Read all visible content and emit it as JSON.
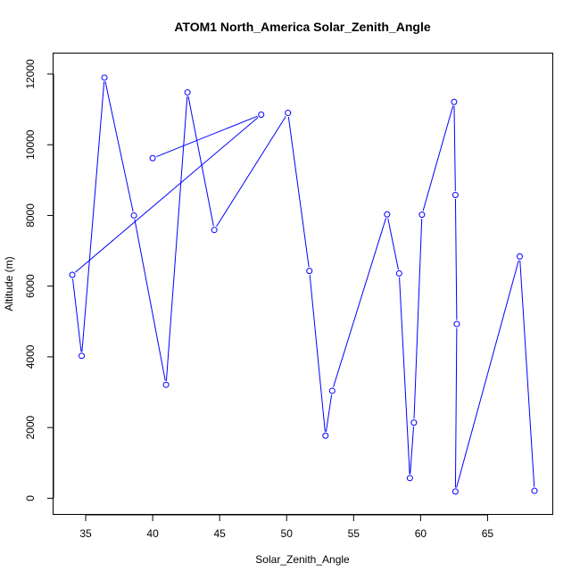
{
  "chart_data": {
    "type": "line",
    "title": "ATOM1 North_America Solar_Zenith_Angle",
    "xlabel": "Solar_Zenith_Angle",
    "ylabel": "Altitude (m)",
    "xlim": [
      32.6,
      69.9
    ],
    "ylim": [
      -470,
      12580
    ],
    "x_ticks": [
      35,
      40,
      45,
      50,
      55,
      60,
      65
    ],
    "y_ticks": [
      0,
      2000,
      4000,
      6000,
      8000,
      10000,
      12000
    ],
    "grid": false,
    "color": "#0000ff",
    "series": [
      {
        "x": [
          40.0,
          48.1,
          34.0,
          34.7,
          36.4,
          38.6,
          41.0,
          42.6,
          44.6,
          50.1,
          51.7,
          52.9,
          53.4,
          57.5,
          58.4,
          59.2,
          59.5,
          60.1,
          62.5,
          62.6,
          62.7,
          62.6,
          67.4,
          68.5
        ],
        "y": [
          9620,
          10850,
          6320,
          4030,
          11900,
          8000,
          3210,
          11480,
          7590,
          10900,
          6430,
          1770,
          3040,
          8030,
          6360,
          570,
          2140,
          8020,
          11210,
          8580,
          4930,
          190,
          6840,
          210
        ]
      }
    ]
  }
}
